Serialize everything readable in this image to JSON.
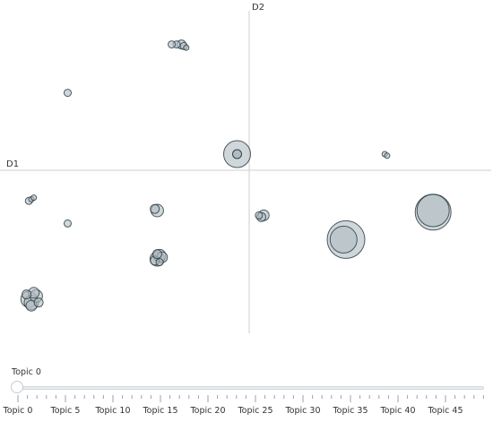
{
  "chart_data": {
    "type": "scatter",
    "title": "",
    "xlabel": "D1",
    "ylabel": "D2",
    "xlim": [
      -1,
      1
    ],
    "ylim": [
      -1,
      1
    ],
    "grid": false,
    "colors": {
      "bubble_fill": "#b0bcc2",
      "bubble_stroke": "#2f3f47",
      "axis_line": "#d6d6d6"
    },
    "points": [
      {
        "topic": 0,
        "x": -0.05,
        "y": 0.1,
        "r": 15,
        "hl": true
      },
      {
        "topic": 1,
        "x": 0.76,
        "y": -0.26,
        "r": 20
      },
      {
        "topic": 2,
        "x": 0.76,
        "y": -0.25,
        "r": 18
      },
      {
        "topic": 3,
        "x": 0.4,
        "y": -0.43,
        "r": 21
      },
      {
        "topic": 4,
        "x": 0.39,
        "y": -0.43,
        "r": 15
      },
      {
        "topic": 5,
        "x": -0.91,
        "y": -0.8,
        "r": 9
      },
      {
        "topic": 6,
        "x": -0.9,
        "y": -0.82,
        "r": 8
      },
      {
        "topic": 7,
        "x": -0.88,
        "y": -0.78,
        "r": 7
      },
      {
        "topic": 8,
        "x": -0.89,
        "y": -0.76,
        "r": 6
      },
      {
        "topic": 9,
        "x": -0.9,
        "y": -0.84,
        "r": 6
      },
      {
        "topic": 10,
        "x": -0.87,
        "y": -0.82,
        "r": 5
      },
      {
        "topic": 11,
        "x": -0.92,
        "y": -0.77,
        "r": 5
      },
      {
        "topic": 12,
        "x": -0.38,
        "y": -0.55,
        "r": 8
      },
      {
        "topic": 13,
        "x": -0.37,
        "y": -0.53,
        "r": 7
      },
      {
        "topic": 14,
        "x": -0.36,
        "y": -0.54,
        "r": 6
      },
      {
        "topic": 15,
        "x": -0.39,
        "y": -0.56,
        "r": 5
      },
      {
        "topic": 16,
        "x": -0.38,
        "y": -0.52,
        "r": 5
      },
      {
        "topic": 17,
        "x": -0.37,
        "y": -0.57,
        "r": 4
      },
      {
        "topic": 18,
        "x": -0.28,
        "y": 0.78,
        "r": 5
      },
      {
        "topic": 19,
        "x": -0.3,
        "y": 0.78,
        "r": 4
      },
      {
        "topic": 20,
        "x": -0.32,
        "y": 0.78,
        "r": 4
      },
      {
        "topic": 21,
        "x": -0.27,
        "y": 0.77,
        "r": 4
      },
      {
        "topic": 22,
        "x": -0.26,
        "y": 0.76,
        "r": 3
      },
      {
        "topic": 23,
        "x": -0.75,
        "y": 0.48,
        "r": 4
      },
      {
        "topic": 24,
        "x": -0.38,
        "y": -0.25,
        "r": 7
      },
      {
        "topic": 25,
        "x": -0.39,
        "y": -0.24,
        "r": 5
      },
      {
        "topic": 26,
        "x": 0.06,
        "y": -0.28,
        "r": 6
      },
      {
        "topic": 27,
        "x": 0.05,
        "y": -0.29,
        "r": 5
      },
      {
        "topic": 28,
        "x": 0.04,
        "y": -0.28,
        "r": 4
      },
      {
        "topic": 29,
        "x": -0.91,
        "y": -0.19,
        "r": 4
      },
      {
        "topic": 30,
        "x": -0.9,
        "y": -0.18,
        "r": 3
      },
      {
        "topic": 31,
        "x": -0.89,
        "y": -0.17,
        "r": 3
      },
      {
        "topic": 32,
        "x": -0.75,
        "y": -0.33,
        "r": 4
      },
      {
        "topic": 33,
        "x": 0.56,
        "y": 0.1,
        "r": 3
      },
      {
        "topic": 34,
        "x": 0.57,
        "y": 0.09,
        "r": 3
      }
    ]
  },
  "slider": {
    "current_label": "Topic 0",
    "ticks": [
      "Topic 0",
      "Topic 5",
      "Topic 10",
      "Topic 15",
      "Topic 20",
      "Topic 25",
      "Topic 30",
      "Topic 35",
      "Topic 40",
      "Topic 45"
    ]
  }
}
